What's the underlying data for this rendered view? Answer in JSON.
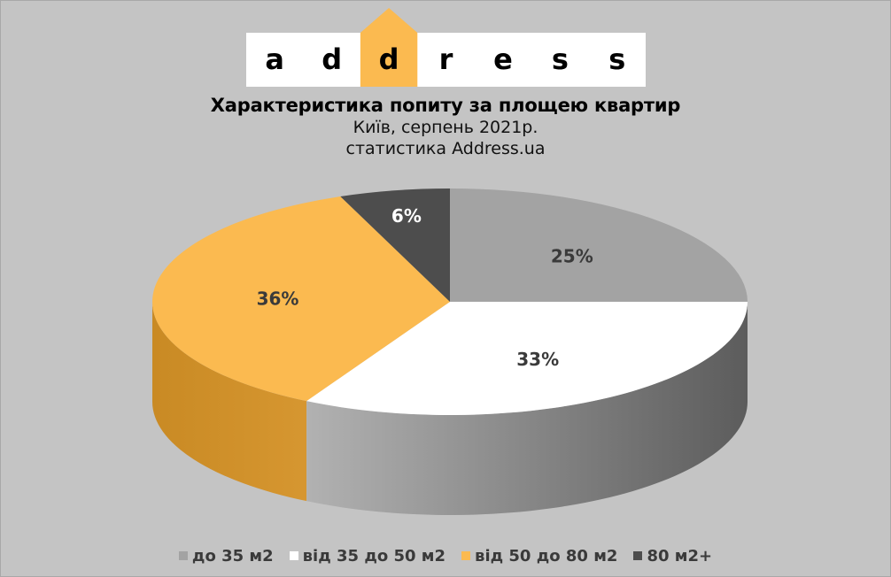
{
  "logo": {
    "letters": [
      "a",
      "d",
      "d",
      "r",
      "e",
      "s",
      "s"
    ],
    "highlight_index": 2,
    "box_color": "#ffffff",
    "highlight_color": "#fbba50"
  },
  "chart_data": {
    "type": "pie",
    "title": "Характеристика попиту за площею квартир",
    "subtitle_lines": [
      "Київ, серпень 2021р.",
      "статистика Address.ua"
    ],
    "categories": [
      "до 35 м2",
      "від 35 до 50 м2",
      "від 50 до 80 м2",
      "80 м2+"
    ],
    "values": [
      25,
      33,
      36,
      6
    ],
    "data_labels": [
      "25%",
      "33%",
      "36%",
      "6%"
    ],
    "colors": [
      "#a3a3a3",
      "#ffffff",
      "#fbba50",
      "#4d4d4d"
    ],
    "label_colors": [
      "#3a3a3a",
      "#3a3a3a",
      "#3a3a3a",
      "#ffffff"
    ],
    "legend_position": "bottom",
    "style": "3d"
  }
}
